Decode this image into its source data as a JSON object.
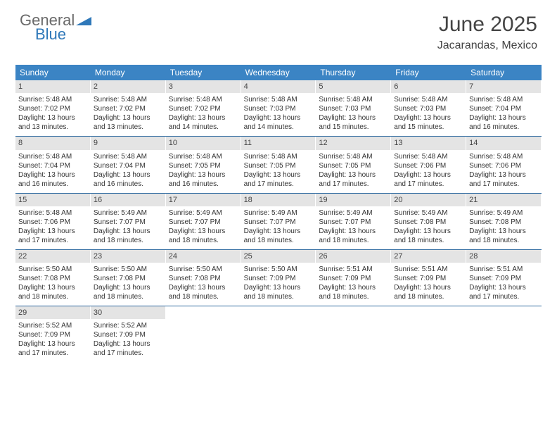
{
  "logo": {
    "text1": "General",
    "text2": "Blue",
    "tri_color": "#2f78b9"
  },
  "title": "June 2025",
  "subtitle": "Jacarandas, Mexico",
  "colors": {
    "header_bg": "#3b84c4",
    "header_fg": "#ffffff",
    "date_bar_bg": "#e4e4e4",
    "week_border": "#2f6aa0",
    "text": "#333333"
  },
  "day_names": [
    "Sunday",
    "Monday",
    "Tuesday",
    "Wednesday",
    "Thursday",
    "Friday",
    "Saturday"
  ],
  "weeks": [
    [
      {
        "date": "1",
        "sunrise": "Sunrise: 5:48 AM",
        "sunset": "Sunset: 7:02 PM",
        "daylight": "Daylight: 13 hours and 13 minutes."
      },
      {
        "date": "2",
        "sunrise": "Sunrise: 5:48 AM",
        "sunset": "Sunset: 7:02 PM",
        "daylight": "Daylight: 13 hours and 13 minutes."
      },
      {
        "date": "3",
        "sunrise": "Sunrise: 5:48 AM",
        "sunset": "Sunset: 7:02 PM",
        "daylight": "Daylight: 13 hours and 14 minutes."
      },
      {
        "date": "4",
        "sunrise": "Sunrise: 5:48 AM",
        "sunset": "Sunset: 7:03 PM",
        "daylight": "Daylight: 13 hours and 14 minutes."
      },
      {
        "date": "5",
        "sunrise": "Sunrise: 5:48 AM",
        "sunset": "Sunset: 7:03 PM",
        "daylight": "Daylight: 13 hours and 15 minutes."
      },
      {
        "date": "6",
        "sunrise": "Sunrise: 5:48 AM",
        "sunset": "Sunset: 7:03 PM",
        "daylight": "Daylight: 13 hours and 15 minutes."
      },
      {
        "date": "7",
        "sunrise": "Sunrise: 5:48 AM",
        "sunset": "Sunset: 7:04 PM",
        "daylight": "Daylight: 13 hours and 16 minutes."
      }
    ],
    [
      {
        "date": "8",
        "sunrise": "Sunrise: 5:48 AM",
        "sunset": "Sunset: 7:04 PM",
        "daylight": "Daylight: 13 hours and 16 minutes."
      },
      {
        "date": "9",
        "sunrise": "Sunrise: 5:48 AM",
        "sunset": "Sunset: 7:04 PM",
        "daylight": "Daylight: 13 hours and 16 minutes."
      },
      {
        "date": "10",
        "sunrise": "Sunrise: 5:48 AM",
        "sunset": "Sunset: 7:05 PM",
        "daylight": "Daylight: 13 hours and 16 minutes."
      },
      {
        "date": "11",
        "sunrise": "Sunrise: 5:48 AM",
        "sunset": "Sunset: 7:05 PM",
        "daylight": "Daylight: 13 hours and 17 minutes."
      },
      {
        "date": "12",
        "sunrise": "Sunrise: 5:48 AM",
        "sunset": "Sunset: 7:05 PM",
        "daylight": "Daylight: 13 hours and 17 minutes."
      },
      {
        "date": "13",
        "sunrise": "Sunrise: 5:48 AM",
        "sunset": "Sunset: 7:06 PM",
        "daylight": "Daylight: 13 hours and 17 minutes."
      },
      {
        "date": "14",
        "sunrise": "Sunrise: 5:48 AM",
        "sunset": "Sunset: 7:06 PM",
        "daylight": "Daylight: 13 hours and 17 minutes."
      }
    ],
    [
      {
        "date": "15",
        "sunrise": "Sunrise: 5:48 AM",
        "sunset": "Sunset: 7:06 PM",
        "daylight": "Daylight: 13 hours and 17 minutes."
      },
      {
        "date": "16",
        "sunrise": "Sunrise: 5:49 AM",
        "sunset": "Sunset: 7:07 PM",
        "daylight": "Daylight: 13 hours and 18 minutes."
      },
      {
        "date": "17",
        "sunrise": "Sunrise: 5:49 AM",
        "sunset": "Sunset: 7:07 PM",
        "daylight": "Daylight: 13 hours and 18 minutes."
      },
      {
        "date": "18",
        "sunrise": "Sunrise: 5:49 AM",
        "sunset": "Sunset: 7:07 PM",
        "daylight": "Daylight: 13 hours and 18 minutes."
      },
      {
        "date": "19",
        "sunrise": "Sunrise: 5:49 AM",
        "sunset": "Sunset: 7:07 PM",
        "daylight": "Daylight: 13 hours and 18 minutes."
      },
      {
        "date": "20",
        "sunrise": "Sunrise: 5:49 AM",
        "sunset": "Sunset: 7:08 PM",
        "daylight": "Daylight: 13 hours and 18 minutes."
      },
      {
        "date": "21",
        "sunrise": "Sunrise: 5:49 AM",
        "sunset": "Sunset: 7:08 PM",
        "daylight": "Daylight: 13 hours and 18 minutes."
      }
    ],
    [
      {
        "date": "22",
        "sunrise": "Sunrise: 5:50 AM",
        "sunset": "Sunset: 7:08 PM",
        "daylight": "Daylight: 13 hours and 18 minutes."
      },
      {
        "date": "23",
        "sunrise": "Sunrise: 5:50 AM",
        "sunset": "Sunset: 7:08 PM",
        "daylight": "Daylight: 13 hours and 18 minutes."
      },
      {
        "date": "24",
        "sunrise": "Sunrise: 5:50 AM",
        "sunset": "Sunset: 7:08 PM",
        "daylight": "Daylight: 13 hours and 18 minutes."
      },
      {
        "date": "25",
        "sunrise": "Sunrise: 5:50 AM",
        "sunset": "Sunset: 7:09 PM",
        "daylight": "Daylight: 13 hours and 18 minutes."
      },
      {
        "date": "26",
        "sunrise": "Sunrise: 5:51 AM",
        "sunset": "Sunset: 7:09 PM",
        "daylight": "Daylight: 13 hours and 18 minutes."
      },
      {
        "date": "27",
        "sunrise": "Sunrise: 5:51 AM",
        "sunset": "Sunset: 7:09 PM",
        "daylight": "Daylight: 13 hours and 18 minutes."
      },
      {
        "date": "28",
        "sunrise": "Sunrise: 5:51 AM",
        "sunset": "Sunset: 7:09 PM",
        "daylight": "Daylight: 13 hours and 17 minutes."
      }
    ],
    [
      {
        "date": "29",
        "sunrise": "Sunrise: 5:52 AM",
        "sunset": "Sunset: 7:09 PM",
        "daylight": "Daylight: 13 hours and 17 minutes."
      },
      {
        "date": "30",
        "sunrise": "Sunrise: 5:52 AM",
        "sunset": "Sunset: 7:09 PM",
        "daylight": "Daylight: 13 hours and 17 minutes."
      },
      {
        "empty": true
      },
      {
        "empty": true
      },
      {
        "empty": true
      },
      {
        "empty": true
      },
      {
        "empty": true
      }
    ]
  ]
}
